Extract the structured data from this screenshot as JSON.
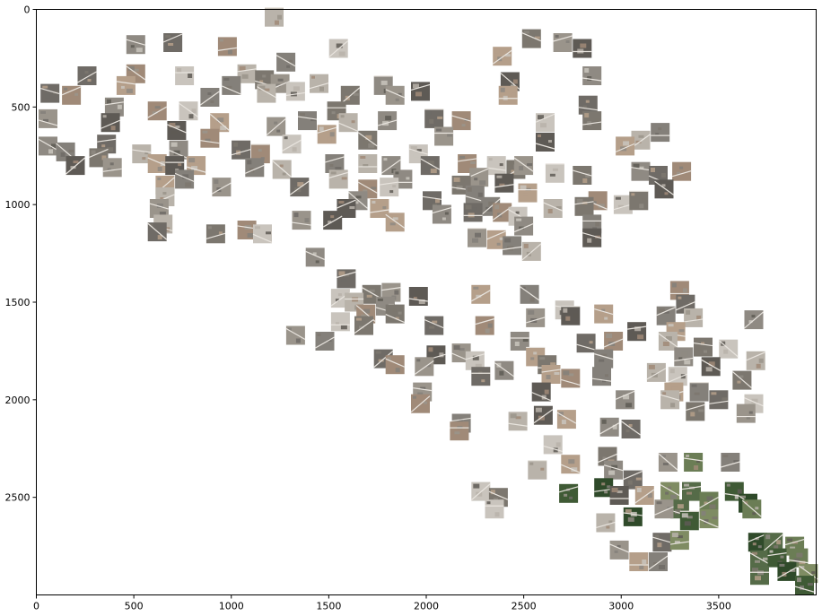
{
  "chart_data": {
    "type": "scatter",
    "title": "",
    "xlabel": "",
    "ylabel": "",
    "xlim": [
      0,
      4000
    ],
    "ylim": [
      3000,
      0
    ],
    "y_inverted": true,
    "grid": false,
    "xticks": [
      0,
      500,
      1000,
      1500,
      2000,
      2500,
      3000,
      3500
    ],
    "yticks": [
      0,
      500,
      1000,
      1500,
      2000,
      2500
    ],
    "marker": "aerial-image-thumbnail",
    "marker_colors": [
      "#b9b3aa",
      "#8f8a83",
      "#6f6b66",
      "#a08a78",
      "#c9c4bd",
      "#7c776f",
      "#9a948b",
      "#5e5a55",
      "#b59f8a",
      "#84807a",
      "#556b48",
      "#3f5a35",
      "#6b7d55",
      "#2f4a2a",
      "#7f8c63"
    ],
    "points": [
      {
        "x": 1220,
        "y": 40
      },
      {
        "x": 510,
        "y": 180
      },
      {
        "x": 700,
        "y": 170
      },
      {
        "x": 980,
        "y": 190
      },
      {
        "x": 1550,
        "y": 200
      },
      {
        "x": 2540,
        "y": 150
      },
      {
        "x": 2700,
        "y": 170
      },
      {
        "x": 2800,
        "y": 200
      },
      {
        "x": 2390,
        "y": 240
      },
      {
        "x": 1280,
        "y": 270
      },
      {
        "x": 1080,
        "y": 330
      },
      {
        "x": 2850,
        "y": 340
      },
      {
        "x": 260,
        "y": 340
      },
      {
        "x": 510,
        "y": 330
      },
      {
        "x": 760,
        "y": 340
      },
      {
        "x": 1170,
        "y": 360
      },
      {
        "x": 1250,
        "y": 380
      },
      {
        "x": 2430,
        "y": 370
      },
      {
        "x": 460,
        "y": 390
      },
      {
        "x": 1000,
        "y": 390
      },
      {
        "x": 1450,
        "y": 380
      },
      {
        "x": 1780,
        "y": 390
      },
      {
        "x": 70,
        "y": 430
      },
      {
        "x": 180,
        "y": 440
      },
      {
        "x": 1330,
        "y": 420
      },
      {
        "x": 1610,
        "y": 440
      },
      {
        "x": 1840,
        "y": 440
      },
      {
        "x": 1970,
        "y": 420
      },
      {
        "x": 2420,
        "y": 440
      },
      {
        "x": 890,
        "y": 450
      },
      {
        "x": 1180,
        "y": 430
      },
      {
        "x": 400,
        "y": 500
      },
      {
        "x": 2830,
        "y": 490
      },
      {
        "x": 620,
        "y": 520
      },
      {
        "x": 780,
        "y": 520
      },
      {
        "x": 1540,
        "y": 520
      },
      {
        "x": 60,
        "y": 560
      },
      {
        "x": 380,
        "y": 580
      },
      {
        "x": 940,
        "y": 580
      },
      {
        "x": 1390,
        "y": 570
      },
      {
        "x": 1600,
        "y": 580
      },
      {
        "x": 1800,
        "y": 570
      },
      {
        "x": 2040,
        "y": 560
      },
      {
        "x": 2180,
        "y": 570
      },
      {
        "x": 2610,
        "y": 580
      },
      {
        "x": 2850,
        "y": 570
      },
      {
        "x": 1230,
        "y": 600
      },
      {
        "x": 720,
        "y": 620
      },
      {
        "x": 1490,
        "y": 640
      },
      {
        "x": 3200,
        "y": 630
      },
      {
        "x": 3100,
        "y": 670
      },
      {
        "x": 60,
        "y": 700
      },
      {
        "x": 360,
        "y": 690
      },
      {
        "x": 890,
        "y": 660
      },
      {
        "x": 1310,
        "y": 690
      },
      {
        "x": 1700,
        "y": 670
      },
      {
        "x": 2090,
        "y": 650
      },
      {
        "x": 2610,
        "y": 680
      },
      {
        "x": 3020,
        "y": 700
      },
      {
        "x": 150,
        "y": 730
      },
      {
        "x": 540,
        "y": 740
      },
      {
        "x": 730,
        "y": 720
      },
      {
        "x": 1050,
        "y": 720
      },
      {
        "x": 1150,
        "y": 740
      },
      {
        "x": 1960,
        "y": 740
      },
      {
        "x": 320,
        "y": 760
      },
      {
        "x": 390,
        "y": 810
      },
      {
        "x": 200,
        "y": 800
      },
      {
        "x": 620,
        "y": 790
      },
      {
        "x": 1530,
        "y": 790
      },
      {
        "x": 1700,
        "y": 790
      },
      {
        "x": 1820,
        "y": 800
      },
      {
        "x": 2020,
        "y": 800
      },
      {
        "x": 2210,
        "y": 790
      },
      {
        "x": 2360,
        "y": 800
      },
      {
        "x": 2460,
        "y": 820
      },
      {
        "x": 2500,
        "y": 800
      },
      {
        "x": 710,
        "y": 800
      },
      {
        "x": 820,
        "y": 800
      },
      {
        "x": 1120,
        "y": 810
      },
      {
        "x": 1260,
        "y": 820
      },
      {
        "x": 3100,
        "y": 830
      },
      {
        "x": 3190,
        "y": 850
      },
      {
        "x": 3310,
        "y": 830
      },
      {
        "x": 2660,
        "y": 840
      },
      {
        "x": 2800,
        "y": 850
      },
      {
        "x": 2270,
        "y": 860
      },
      {
        "x": 2400,
        "y": 890
      },
      {
        "x": 660,
        "y": 900
      },
      {
        "x": 760,
        "y": 870
      },
      {
        "x": 1550,
        "y": 870
      },
      {
        "x": 1880,
        "y": 870
      },
      {
        "x": 1350,
        "y": 910
      },
      {
        "x": 1700,
        "y": 920
      },
      {
        "x": 1810,
        "y": 910
      },
      {
        "x": 2180,
        "y": 900
      },
      {
        "x": 950,
        "y": 910
      },
      {
        "x": 3220,
        "y": 920
      },
      {
        "x": 2520,
        "y": 940
      },
      {
        "x": 2250,
        "y": 950
      },
      {
        "x": 660,
        "y": 960
      },
      {
        "x": 1650,
        "y": 980
      },
      {
        "x": 2030,
        "y": 980
      },
      {
        "x": 2880,
        "y": 980
      },
      {
        "x": 3010,
        "y": 1000
      },
      {
        "x": 3090,
        "y": 980
      },
      {
        "x": 630,
        "y": 1020
      },
      {
        "x": 1590,
        "y": 1020
      },
      {
        "x": 1760,
        "y": 1020
      },
      {
        "x": 2330,
        "y": 1010
      },
      {
        "x": 2650,
        "y": 1020
      },
      {
        "x": 2080,
        "y": 1050
      },
      {
        "x": 2240,
        "y": 1040
      },
      {
        "x": 2390,
        "y": 1040
      },
      {
        "x": 2470,
        "y": 1060
      },
      {
        "x": 2810,
        "y": 1010
      },
      {
        "x": 1360,
        "y": 1080
      },
      {
        "x": 1520,
        "y": 1080
      },
      {
        "x": 1840,
        "y": 1090
      },
      {
        "x": 2850,
        "y": 1100
      },
      {
        "x": 650,
        "y": 1100
      },
      {
        "x": 2500,
        "y": 1110
      },
      {
        "x": 620,
        "y": 1140
      },
      {
        "x": 1080,
        "y": 1130
      },
      {
        "x": 1160,
        "y": 1150
      },
      {
        "x": 920,
        "y": 1150
      },
      {
        "x": 2260,
        "y": 1170
      },
      {
        "x": 2850,
        "y": 1170
      },
      {
        "x": 2360,
        "y": 1180
      },
      {
        "x": 2440,
        "y": 1210
      },
      {
        "x": 2540,
        "y": 1240
      },
      {
        "x": 1430,
        "y": 1270
      },
      {
        "x": 1590,
        "y": 1380
      },
      {
        "x": 3300,
        "y": 1440
      },
      {
        "x": 1560,
        "y": 1480
      },
      {
        "x": 1720,
        "y": 1460
      },
      {
        "x": 1820,
        "y": 1450
      },
      {
        "x": 1960,
        "y": 1470
      },
      {
        "x": 2280,
        "y": 1460
      },
      {
        "x": 2530,
        "y": 1460
      },
      {
        "x": 1630,
        "y": 1500
      },
      {
        "x": 1790,
        "y": 1520
      },
      {
        "x": 3330,
        "y": 1510
      },
      {
        "x": 1690,
        "y": 1560
      },
      {
        "x": 2710,
        "y": 1540
      },
      {
        "x": 1840,
        "y": 1560
      },
      {
        "x": 2560,
        "y": 1580
      },
      {
        "x": 2740,
        "y": 1570
      },
      {
        "x": 2910,
        "y": 1560
      },
      {
        "x": 3230,
        "y": 1570
      },
      {
        "x": 3370,
        "y": 1580
      },
      {
        "x": 3680,
        "y": 1590
      },
      {
        "x": 2040,
        "y": 1620
      },
      {
        "x": 2300,
        "y": 1620
      },
      {
        "x": 1560,
        "y": 1600
      },
      {
        "x": 1680,
        "y": 1620
      },
      {
        "x": 1330,
        "y": 1670
      },
      {
        "x": 3080,
        "y": 1650
      },
      {
        "x": 3280,
        "y": 1650
      },
      {
        "x": 1480,
        "y": 1700
      },
      {
        "x": 3240,
        "y": 1700
      },
      {
        "x": 2480,
        "y": 1700
      },
      {
        "x": 2820,
        "y": 1710
      },
      {
        "x": 2960,
        "y": 1700
      },
      {
        "x": 3550,
        "y": 1740
      },
      {
        "x": 3420,
        "y": 1730
      },
      {
        "x": 2180,
        "y": 1760
      },
      {
        "x": 2050,
        "y": 1770
      },
      {
        "x": 2560,
        "y": 1780
      },
      {
        "x": 2910,
        "y": 1790
      },
      {
        "x": 3690,
        "y": 1800
      },
      {
        "x": 3320,
        "y": 1780
      },
      {
        "x": 1780,
        "y": 1790
      },
      {
        "x": 1840,
        "y": 1820
      },
      {
        "x": 2250,
        "y": 1800
      },
      {
        "x": 2620,
        "y": 1820
      },
      {
        "x": 1990,
        "y": 1830
      },
      {
        "x": 3460,
        "y": 1830
      },
      {
        "x": 2640,
        "y": 1870
      },
      {
        "x": 2900,
        "y": 1880
      },
      {
        "x": 3180,
        "y": 1860
      },
      {
        "x": 2400,
        "y": 1850
      },
      {
        "x": 2280,
        "y": 1880
      },
      {
        "x": 2740,
        "y": 1890
      },
      {
        "x": 3290,
        "y": 1880
      },
      {
        "x": 3620,
        "y": 1900
      },
      {
        "x": 1980,
        "y": 1960
      },
      {
        "x": 2590,
        "y": 1960
      },
      {
        "x": 3270,
        "y": 1960
      },
      {
        "x": 3400,
        "y": 1960
      },
      {
        "x": 3250,
        "y": 2000
      },
      {
        "x": 3020,
        "y": 2000
      },
      {
        "x": 3500,
        "y": 2000
      },
      {
        "x": 1970,
        "y": 2020
      },
      {
        "x": 3680,
        "y": 2020
      },
      {
        "x": 3380,
        "y": 2060
      },
      {
        "x": 3640,
        "y": 2070
      },
      {
        "x": 2600,
        "y": 2080
      },
      {
        "x": 2720,
        "y": 2100
      },
      {
        "x": 2180,
        "y": 2120
      },
      {
        "x": 2470,
        "y": 2110
      },
      {
        "x": 2940,
        "y": 2140
      },
      {
        "x": 3050,
        "y": 2150
      },
      {
        "x": 2170,
        "y": 2160
      },
      {
        "x": 2650,
        "y": 2230
      },
      {
        "x": 2930,
        "y": 2290
      },
      {
        "x": 3240,
        "y": 2320
      },
      {
        "x": 3370,
        "y": 2320
      },
      {
        "x": 2740,
        "y": 2330
      },
      {
        "x": 3560,
        "y": 2320
      },
      {
        "x": 2570,
        "y": 2360
      },
      {
        "x": 2960,
        "y": 2360
      },
      {
        "x": 3060,
        "y": 2410
      },
      {
        "x": 2910,
        "y": 2450
      },
      {
        "x": 2280,
        "y": 2470
      },
      {
        "x": 2370,
        "y": 2500
      },
      {
        "x": 2730,
        "y": 2480
      },
      {
        "x": 2990,
        "y": 2490
      },
      {
        "x": 3120,
        "y": 2490
      },
      {
        "x": 3250,
        "y": 2470
      },
      {
        "x": 3360,
        "y": 2470
      },
      {
        "x": 3580,
        "y": 2470
      },
      {
        "x": 3450,
        "y": 2520
      },
      {
        "x": 3650,
        "y": 2530
      },
      {
        "x": 2350,
        "y": 2560
      },
      {
        "x": 3300,
        "y": 2560
      },
      {
        "x": 3220,
        "y": 2560
      },
      {
        "x": 3670,
        "y": 2560
      },
      {
        "x": 3060,
        "y": 2600
      },
      {
        "x": 3450,
        "y": 2610
      },
      {
        "x": 2920,
        "y": 2630
      },
      {
        "x": 3350,
        "y": 2620
      },
      {
        "x": 3210,
        "y": 2730
      },
      {
        "x": 3700,
        "y": 2730
      },
      {
        "x": 3300,
        "y": 2720
      },
      {
        "x": 3780,
        "y": 2730
      },
      {
        "x": 2990,
        "y": 2770
      },
      {
        "x": 3890,
        "y": 2750
      },
      {
        "x": 3090,
        "y": 2830
      },
      {
        "x": 3190,
        "y": 2830
      },
      {
        "x": 3710,
        "y": 2820
      },
      {
        "x": 3800,
        "y": 2810
      },
      {
        "x": 3910,
        "y": 2810
      },
      {
        "x": 3850,
        "y": 2880
      },
      {
        "x": 3960,
        "y": 2890
      },
      {
        "x": 3710,
        "y": 2900
      },
      {
        "x": 3940,
        "y": 2950
      }
    ]
  }
}
